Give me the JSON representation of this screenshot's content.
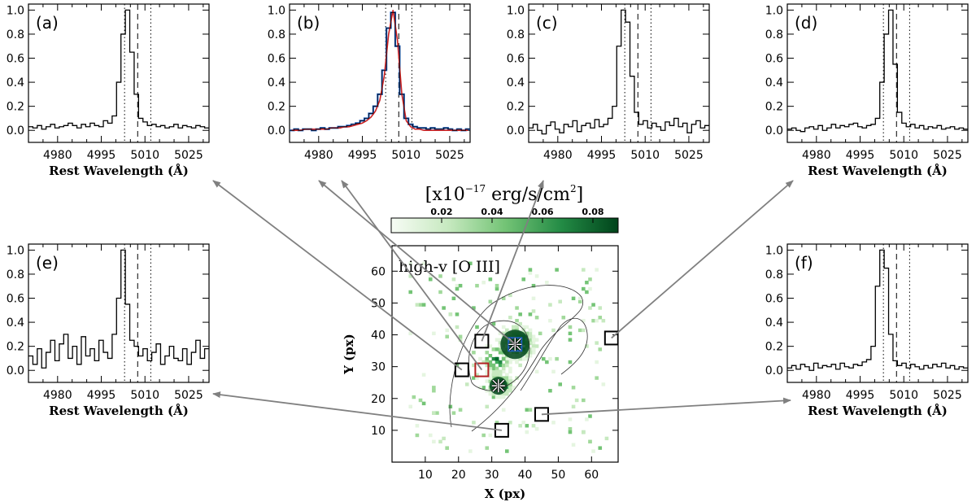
{
  "chart_data": {
    "type": "composite",
    "spectra": [
      {
        "id": "a",
        "panel_label": "(a)",
        "xlabel": "Rest Wavelength (Å)",
        "xlim": [
          4970,
          5032
        ],
        "ylim": [
          -0.1,
          1.05
        ],
        "xticks": [
          4980,
          4995,
          5010,
          5025
        ],
        "yticks": [
          0.0,
          0.2,
          0.4,
          0.6,
          0.8,
          1.0
        ],
        "vlines_dotted": [
          5003,
          5012
        ],
        "vline_dashed": 5007.5,
        "values": [
          0.03,
          0.02,
          0.04,
          0.01,
          0.03,
          0.05,
          0.02,
          0.03,
          0.04,
          0.06,
          0.04,
          0.02,
          0.05,
          0.03,
          0.06,
          0.04,
          0.03,
          0.08,
          0.06,
          0.12,
          0.4,
          0.8,
          1.0,
          0.65,
          0.3,
          0.1,
          0.07,
          0.04,
          0.05,
          0.03,
          0.04,
          0.02,
          0.03,
          0.05,
          0.02,
          0.04,
          0.03,
          0.02,
          0.04,
          0.03,
          0.02
        ]
      },
      {
        "id": "b",
        "panel_label": "(b)",
        "xlabel": "",
        "xlim": [
          4970,
          5032
        ],
        "ylim": [
          -0.1,
          1.05
        ],
        "xticks": [
          4980,
          4995,
          5010,
          5025
        ],
        "yticks": [
          0.0,
          0.2,
          0.4,
          0.6,
          0.8,
          1.0
        ],
        "vlines_dotted": [
          5003,
          5012
        ],
        "vline_dashed": 5007.5,
        "values": [
          0.0,
          0.01,
          0.0,
          0.01,
          0.01,
          0.0,
          0.01,
          0.02,
          0.01,
          0.02,
          0.02,
          0.03,
          0.03,
          0.04,
          0.05,
          0.06,
          0.08,
          0.1,
          0.14,
          0.2,
          0.3,
          0.5,
          0.85,
          0.98,
          0.7,
          0.3,
          0.1,
          0.05,
          0.03,
          0.02,
          0.02,
          0.01,
          0.02,
          0.01,
          0.01,
          0.02,
          0.01,
          0.0,
          0.01,
          0.0,
          0.01
        ],
        "model": [
          0.0,
          0.0,
          0.0,
          0.01,
          0.01,
          0.01,
          0.01,
          0.01,
          0.01,
          0.02,
          0.02,
          0.02,
          0.03,
          0.03,
          0.04,
          0.05,
          0.06,
          0.08,
          0.11,
          0.16,
          0.25,
          0.45,
          0.8,
          1.0,
          0.75,
          0.3,
          0.08,
          0.03,
          0.01,
          0.01,
          0.0,
          0.0,
          0.0,
          0.0,
          0.0,
          0.0,
          0.0,
          0.0,
          0.0,
          0.0,
          0.0
        ]
      },
      {
        "id": "c",
        "panel_label": "(c)",
        "xlabel": "",
        "xlim": [
          4970,
          5032
        ],
        "ylim": [
          -0.1,
          1.05
        ],
        "xticks": [
          4980,
          4995,
          5010,
          5025
        ],
        "yticks": [
          0.0,
          0.2,
          0.4,
          0.6,
          0.8,
          1.0
        ],
        "vlines_dotted": [
          5003,
          5012
        ],
        "vline_dashed": 5007.5,
        "values": [
          0.02,
          0.05,
          0.0,
          -0.03,
          0.04,
          0.07,
          0.01,
          -0.02,
          0.05,
          0.03,
          0.08,
          -0.01,
          0.04,
          0.06,
          0.02,
          0.09,
          0.03,
          0.05,
          0.1,
          0.2,
          0.7,
          1.0,
          0.9,
          0.45,
          0.15,
          0.05,
          0.08,
          0.02,
          0.06,
          0.03,
          0.0,
          0.07,
          0.04,
          0.1,
          0.03,
          0.06,
          -0.02,
          0.05,
          0.08,
          0.02,
          0.04
        ]
      },
      {
        "id": "d",
        "panel_label": "(d)",
        "xlabel": "Rest Wavelength (Å)",
        "xlim": [
          4970,
          5032
        ],
        "ylim": [
          -0.1,
          1.05
        ],
        "xticks": [
          4980,
          4995,
          5010,
          5025
        ],
        "yticks": [
          0.0,
          0.2,
          0.4,
          0.6,
          0.8,
          1.0
        ],
        "vlines_dotted": [
          5003,
          5012
        ],
        "vline_dashed": 5007.5,
        "values": [
          0.01,
          0.02,
          0.0,
          -0.01,
          0.02,
          0.03,
          0.01,
          0.04,
          0.0,
          0.02,
          0.05,
          0.02,
          0.04,
          0.03,
          0.05,
          0.06,
          0.03,
          0.02,
          0.04,
          0.05,
          0.1,
          0.4,
          0.8,
          1.0,
          0.55,
          0.15,
          0.06,
          0.03,
          0.05,
          0.02,
          0.04,
          0.01,
          0.03,
          0.02,
          0.04,
          0.01,
          0.02,
          0.03,
          0.01,
          0.02,
          0.01
        ]
      },
      {
        "id": "e",
        "panel_label": "(e)",
        "xlabel": "Rest Wavelength (Å)",
        "xlim": [
          4970,
          5032
        ],
        "ylim": [
          -0.1,
          1.05
        ],
        "xticks": [
          4980,
          4995,
          5010,
          5025
        ],
        "yticks": [
          0.0,
          0.2,
          0.4,
          0.6,
          0.8,
          1.0
        ],
        "vlines_dotted": [
          5003,
          5012
        ],
        "vline_dashed": 5007.5,
        "values": [
          0.12,
          0.05,
          0.18,
          0.02,
          0.15,
          0.25,
          0.08,
          0.22,
          0.3,
          0.1,
          0.2,
          0.05,
          0.28,
          0.12,
          0.18,
          0.08,
          0.25,
          0.15,
          0.1,
          0.3,
          0.6,
          1.0,
          0.55,
          0.25,
          0.2,
          0.12,
          0.18,
          0.08,
          0.15,
          0.22,
          0.05,
          0.12,
          0.2,
          0.1,
          0.08,
          0.18,
          0.05,
          0.15,
          0.25,
          0.1,
          0.18
        ]
      },
      {
        "id": "f",
        "panel_label": "(f)",
        "xlabel": "Rest Wavelength (Å)",
        "xlim": [
          4970,
          5032
        ],
        "ylim": [
          -0.1,
          1.05
        ],
        "xticks": [
          4980,
          4995,
          5010,
          5025
        ],
        "yticks": [
          0.0,
          0.2,
          0.4,
          0.6,
          0.8,
          1.0
        ],
        "vlines_dotted": [
          5003,
          5012
        ],
        "vline_dashed": 5007.5,
        "values": [
          0.02,
          0.04,
          0.01,
          0.05,
          0.03,
          0.0,
          0.06,
          0.02,
          0.04,
          0.03,
          0.05,
          0.01,
          0.06,
          0.03,
          0.02,
          0.05,
          0.04,
          0.07,
          0.09,
          0.2,
          0.7,
          1.0,
          0.85,
          0.3,
          0.08,
          0.04,
          0.06,
          0.02,
          0.05,
          0.03,
          0.01,
          0.04,
          0.02,
          0.05,
          0.03,
          0.06,
          0.02,
          0.04,
          0.01,
          0.03,
          0.02
        ]
      }
    ],
    "colorbar": {
      "title_prefix": "[x10",
      "title_exp": "−17",
      "title_suffix": " erg/s/cm",
      "title_exp2": "2",
      "title_close": "]",
      "range": [
        0.0,
        0.09
      ],
      "ticks": [
        0.02,
        0.04,
        0.06,
        0.08
      ]
    },
    "map": {
      "label": "high-v [O III]",
      "xlabel": "X (px)",
      "ylabel": "Y (px)",
      "xlim": [
        0,
        68
      ],
      "ylim": [
        0,
        68
      ],
      "xticks": [
        10,
        20,
        30,
        40,
        50,
        60
      ],
      "yticks": [
        10,
        20,
        30,
        40,
        50,
        60
      ],
      "nuclei": [
        [
          37,
          37
        ],
        [
          32,
          24
        ]
      ],
      "apertures": [
        {
          "id": "a",
          "x": 21,
          "y": 29,
          "color": "#000000"
        },
        {
          "id": "b",
          "x": 37,
          "y": 37,
          "color": "#1f5fbf"
        },
        {
          "id": "c",
          "x": 27,
          "y": 38,
          "color": "#000000"
        },
        {
          "id": "d",
          "x": 66,
          "y": 39,
          "color": "#000000"
        },
        {
          "id": "e",
          "x": 33,
          "y": 10,
          "color": "#000000"
        },
        {
          "id": "f",
          "x": 45,
          "y": 15,
          "color": "#000000"
        },
        {
          "id": "ref",
          "x": 27,
          "y": 29,
          "color": "#b22222"
        }
      ]
    }
  },
  "colors": {
    "hist": "#000000",
    "blue": "#1f5fbf",
    "red": "#cc2222",
    "arrow": "#808080",
    "green_dark": "#00441b",
    "green_light": "#f7fcf5"
  }
}
